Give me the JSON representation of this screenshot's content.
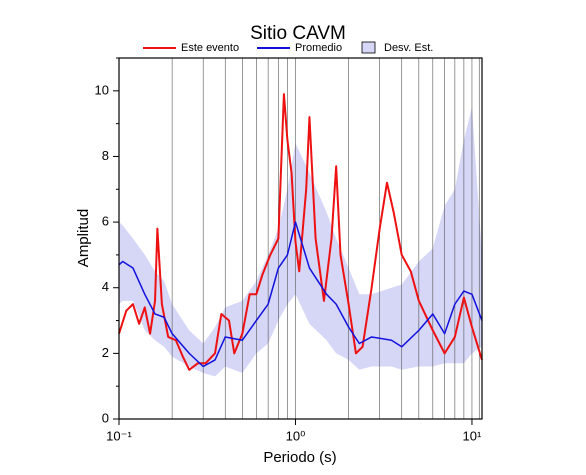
{
  "chart_data": {
    "type": "line",
    "title": "Sitio CAVM",
    "xlabel": "Periodo (s)",
    "ylabel": "Amplitud",
    "xscale": "log",
    "xlim": [
      0.1,
      11.4
    ],
    "ylim": [
      0,
      11
    ],
    "xticks": [
      {
        "value": 0.1,
        "label": "10⁻¹"
      },
      {
        "value": 1,
        "label": "10⁰"
      },
      {
        "value": 10,
        "label": "10¹"
      }
    ],
    "x_minor_ticks": [
      0.2,
      0.3,
      0.4,
      0.5,
      0.6,
      0.7,
      0.8,
      0.9,
      2,
      3,
      4,
      5,
      6,
      7,
      8,
      9,
      11
    ],
    "yticks": [
      0,
      2,
      4,
      6,
      8,
      10
    ],
    "y_minor_ticks": [
      1,
      3,
      5,
      7,
      9,
      11
    ],
    "x_grid": true,
    "legend": "top",
    "series": [
      {
        "name": "Este evento",
        "color": "#ee1111",
        "x": [
          0.1,
          0.11,
          0.12,
          0.13,
          0.14,
          0.15,
          0.16,
          0.165,
          0.175,
          0.19,
          0.21,
          0.23,
          0.25,
          0.28,
          0.31,
          0.35,
          0.38,
          0.42,
          0.45,
          0.5,
          0.55,
          0.6,
          0.65,
          0.72,
          0.8,
          0.86,
          0.9,
          0.95,
          1.0,
          1.05,
          1.15,
          1.2,
          1.3,
          1.45,
          1.6,
          1.7,
          1.8,
          2.0,
          2.2,
          2.4,
          2.7,
          3.0,
          3.3,
          3.6,
          4.0,
          4.5,
          5.0,
          6.0,
          7.0,
          8.0,
          9.0,
          10.0,
          11.4
        ],
        "values": [
          2.6,
          3.3,
          3.5,
          2.9,
          3.4,
          2.6,
          3.6,
          5.8,
          3.5,
          2.5,
          2.4,
          1.9,
          1.5,
          1.7,
          1.7,
          2.0,
          3.2,
          3.0,
          2.0,
          2.6,
          3.8,
          3.8,
          4.4,
          5.0,
          5.5,
          9.9,
          8.5,
          7.5,
          5.4,
          4.5,
          7.0,
          9.2,
          5.5,
          3.6,
          5.5,
          7.7,
          5.0,
          3.5,
          2.0,
          2.2,
          4.0,
          5.8,
          7.2,
          6.3,
          5.0,
          4.5,
          3.6,
          2.7,
          2.0,
          2.5,
          3.7,
          2.8,
          1.8
        ]
      },
      {
        "name": "Promedio",
        "color": "#1111dd",
        "x": [
          0.1,
          0.105,
          0.12,
          0.14,
          0.16,
          0.18,
          0.2,
          0.25,
          0.3,
          0.35,
          0.4,
          0.5,
          0.6,
          0.7,
          0.8,
          0.9,
          1.0,
          1.2,
          1.5,
          1.7,
          2.0,
          2.3,
          2.7,
          3.5,
          4.0,
          5.0,
          6.0,
          7.0,
          8.0,
          9.0,
          10.0,
          11.4
        ],
        "values": [
          4.7,
          4.8,
          4.6,
          3.8,
          3.2,
          3.1,
          2.6,
          2.0,
          1.6,
          1.8,
          2.5,
          2.4,
          3.0,
          3.5,
          4.6,
          5.0,
          6.0,
          4.6,
          3.8,
          3.5,
          2.8,
          2.3,
          2.5,
          2.4,
          2.2,
          2.7,
          3.2,
          2.6,
          3.5,
          3.9,
          3.8,
          3.0
        ]
      },
      {
        "name": "Desv. Est.",
        "color": "#d6d6f7",
        "x": [
          0.1,
          0.105,
          0.12,
          0.14,
          0.16,
          0.18,
          0.2,
          0.25,
          0.3,
          0.35,
          0.4,
          0.5,
          0.6,
          0.7,
          0.8,
          0.9,
          1.0,
          1.2,
          1.5,
          1.7,
          2.0,
          2.3,
          2.7,
          3.5,
          4.0,
          5.0,
          6.0,
          7.0,
          8.0,
          9.0,
          10.0,
          11.4
        ],
        "upper": [
          6.0,
          5.9,
          5.5,
          5.0,
          4.5,
          4.2,
          3.5,
          2.7,
          2.3,
          2.8,
          3.4,
          3.6,
          4.2,
          5.0,
          5.8,
          7.0,
          8.4,
          7.5,
          6.3,
          5.5,
          4.6,
          3.8,
          3.8,
          4.0,
          4.1,
          4.8,
          5.2,
          6.5,
          7.0,
          8.5,
          9.5,
          5.0
        ],
        "lower": [
          3.5,
          3.6,
          3.6,
          2.7,
          2.4,
          2.2,
          1.9,
          1.6,
          1.4,
          1.3,
          1.6,
          1.4,
          2.0,
          2.3,
          3.0,
          3.5,
          3.8,
          2.9,
          2.4,
          2.0,
          1.8,
          1.5,
          1.6,
          1.6,
          1.5,
          1.6,
          1.6,
          1.7,
          1.7,
          1.7,
          2.0,
          2.2
        ]
      }
    ]
  }
}
